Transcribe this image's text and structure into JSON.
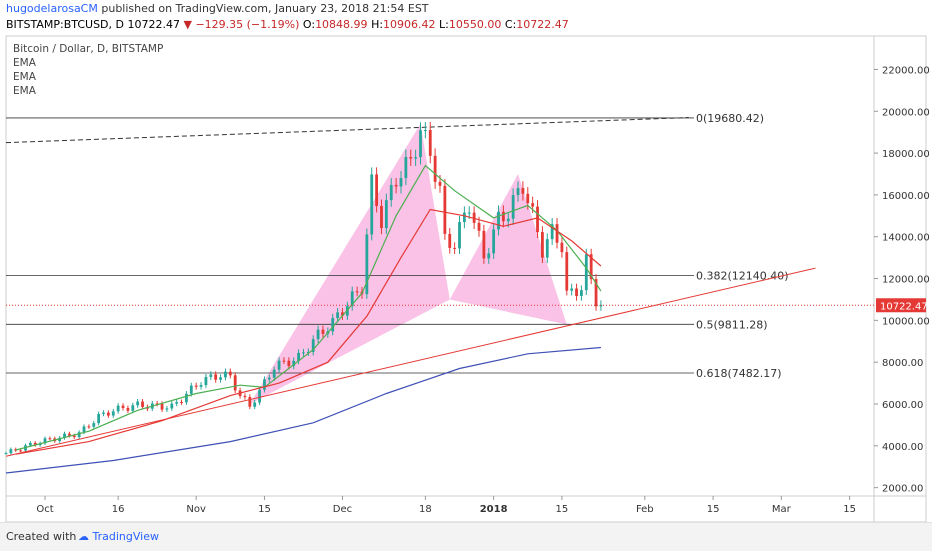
{
  "header": {
    "author": "hugodelarosaCM",
    "published": "published on TradingView.com, January 23, 2018 21:54 EST",
    "symbol": "BITSTAMP:BTCUSD, D",
    "last": "10722.47",
    "change": "▼ −129.35 (−1.19%)",
    "o_label": "O:",
    "o_val": "10848.99",
    "h_label": "H:",
    "h_val": "10906.42",
    "l_label": "L:",
    "l_val": "10550.00",
    "c_label": "C:",
    "c_val": "10722.47"
  },
  "legend": {
    "title": "Bitcoin / Dollar, D, BITSTAMP",
    "ind1": "EMA",
    "ind2": "EMA",
    "ind3": "EMA"
  },
  "footer": {
    "created": "Created with",
    "brand": "TradingView"
  },
  "colors": {
    "up": "#26a69a",
    "down": "#e53935",
    "ema_fast": "#4caf50",
    "ema_mid": "#e53935",
    "ema_slow": "#3f51b5",
    "pattern": "#f48fd2",
    "trend": "#e53935"
  },
  "chart_data": {
    "type": "candlestick",
    "y_axis": {
      "min": 1600,
      "max": 23600,
      "ticks": [
        2000,
        4000,
        6000,
        8000,
        10000,
        12000,
        14000,
        16000,
        18000,
        20000,
        22000
      ],
      "tick_labels": [
        "2000.00",
        "4000.00",
        "6000.00",
        "8000.00",
        "10000.00",
        "12000.00",
        "14000.00",
        "16000.00",
        "18000.00",
        "20000.00",
        "22000.00"
      ]
    },
    "x_axis": {
      "start": "2017-09-23",
      "end": "2018-03-20",
      "ticks": [
        {
          "date": "2017-10-01",
          "label": "Oct"
        },
        {
          "date": "2017-10-16",
          "label": "16"
        },
        {
          "date": "2017-11-01",
          "label": "Nov"
        },
        {
          "date": "2017-11-15",
          "label": "15"
        },
        {
          "date": "2017-12-01",
          "label": "Dec"
        },
        {
          "date": "2017-12-18",
          "label": "18"
        },
        {
          "date": "2018-01-01",
          "label": "2018"
        },
        {
          "date": "2018-01-15",
          "label": "15"
        },
        {
          "date": "2018-02-01",
          "label": "Feb"
        },
        {
          "date": "2018-02-15",
          "label": "15"
        },
        {
          "date": "2018-03-01",
          "label": "Mar"
        },
        {
          "date": "2018-03-15",
          "label": "15"
        }
      ]
    },
    "price_path": [
      [
        "2017-09-23",
        3650
      ],
      [
        "2017-09-30",
        4200
      ],
      [
        "2017-10-08",
        4600
      ],
      [
        "2017-10-12",
        5400
      ],
      [
        "2017-10-15",
        5700
      ],
      [
        "2017-10-20",
        5950
      ],
      [
        "2017-10-27",
        5850
      ],
      [
        "2017-11-02",
        7100
      ],
      [
        "2017-11-06",
        7400
      ],
      [
        "2017-11-08",
        7300
      ],
      [
        "2017-11-10",
        6400
      ],
      [
        "2017-11-12",
        5900
      ],
      [
        "2017-11-14",
        6600
      ],
      [
        "2017-11-17",
        7800
      ],
      [
        "2017-11-22",
        8200
      ],
      [
        "2017-11-26",
        9300
      ],
      [
        "2017-11-29",
        9900
      ],
      [
        "2017-12-02",
        10800
      ],
      [
        "2017-12-05",
        11600
      ],
      [
        "2017-12-07",
        16500
      ],
      [
        "2017-12-09",
        14800
      ],
      [
        "2017-12-12",
        16800
      ],
      [
        "2017-12-15",
        17600
      ],
      [
        "2017-12-17",
        19100
      ],
      [
        "2017-12-19",
        18000
      ],
      [
        "2017-12-21",
        16200
      ],
      [
        "2017-12-22",
        13800
      ],
      [
        "2017-12-24",
        13700
      ],
      [
        "2017-12-27",
        15600
      ],
      [
        "2017-12-30",
        13000
      ],
      [
        "2018-01-02",
        14800
      ],
      [
        "2018-01-04",
        15200
      ],
      [
        "2018-01-07",
        16500
      ],
      [
        "2018-01-09",
        15000
      ],
      [
        "2018-01-11",
        13400
      ],
      [
        "2018-01-13",
        14200
      ],
      [
        "2018-01-15",
        13600
      ],
      [
        "2018-01-16",
        11200
      ],
      [
        "2018-01-17",
        11300
      ],
      [
        "2018-01-19",
        11600
      ],
      [
        "2018-01-20",
        12800
      ],
      [
        "2018-01-22",
        11000
      ],
      [
        "2018-01-23",
        10722
      ]
    ],
    "ema_fast": [
      [
        "2017-09-25",
        3800
      ],
      [
        "2017-10-10",
        4700
      ],
      [
        "2017-10-20",
        5700
      ],
      [
        "2017-11-01",
        6500
      ],
      [
        "2017-11-10",
        6900
      ],
      [
        "2017-11-15",
        6800
      ],
      [
        "2017-11-25",
        8600
      ],
      [
        "2017-12-05",
        11300
      ],
      [
        "2017-12-12",
        15000
      ],
      [
        "2017-12-18",
        17400
      ],
      [
        "2017-12-24",
        16200
      ],
      [
        "2018-01-01",
        14900
      ],
      [
        "2018-01-08",
        15500
      ],
      [
        "2018-01-14",
        14300
      ],
      [
        "2018-01-20",
        12500
      ],
      [
        "2018-01-23",
        11400
      ]
    ],
    "ema_mid": [
      [
        "2017-09-25",
        3600
      ],
      [
        "2017-10-10",
        4200
      ],
      [
        "2017-10-25",
        5200
      ],
      [
        "2017-11-08",
        6400
      ],
      [
        "2017-11-18",
        7000
      ],
      [
        "2017-11-28",
        8000
      ],
      [
        "2017-12-06",
        10200
      ],
      [
        "2017-12-13",
        13000
      ],
      [
        "2017-12-19",
        15300
      ],
      [
        "2017-12-26",
        15000
      ],
      [
        "2018-01-03",
        14500
      ],
      [
        "2018-01-10",
        14900
      ],
      [
        "2018-01-17",
        13800
      ],
      [
        "2018-01-23",
        12600
      ]
    ],
    "ema_slow": [
      [
        "2017-09-23",
        2700
      ],
      [
        "2017-10-15",
        3300
      ],
      [
        "2017-11-08",
        4200
      ],
      [
        "2017-11-25",
        5100
      ],
      [
        "2017-12-10",
        6500
      ],
      [
        "2017-12-25",
        7700
      ],
      [
        "2018-01-08",
        8400
      ],
      [
        "2018-01-23",
        8700
      ]
    ],
    "fib_levels": [
      {
        "label": "0(19680.42)",
        "value": 19680.42
      },
      {
        "label": "0.382(12140.40)",
        "value": 12140.4
      },
      {
        "label": "0.5(9811.28)",
        "value": 9811.28
      },
      {
        "label": "0.618(7482.17)",
        "value": 7482.17
      }
    ],
    "trendline": [
      [
        "2017-09-23",
        3500
      ],
      [
        "2018-03-08",
        12500
      ]
    ],
    "resistance_line": [
      [
        "2017-09-23",
        18500
      ],
      [
        "2018-02-10",
        19700
      ]
    ],
    "harmonic_pattern": [
      [
        [
          "2017-11-12",
          6000
        ],
        [
          "2017-12-17",
          19400
        ],
        [
          "2017-12-23",
          11000
        ]
      ],
      [
        [
          "2017-12-23",
          11000
        ],
        [
          "2018-01-06",
          17000
        ],
        [
          "2018-01-16",
          9800
        ]
      ]
    ],
    "current_price": {
      "value": 10722.47,
      "label": "10722.47"
    }
  }
}
